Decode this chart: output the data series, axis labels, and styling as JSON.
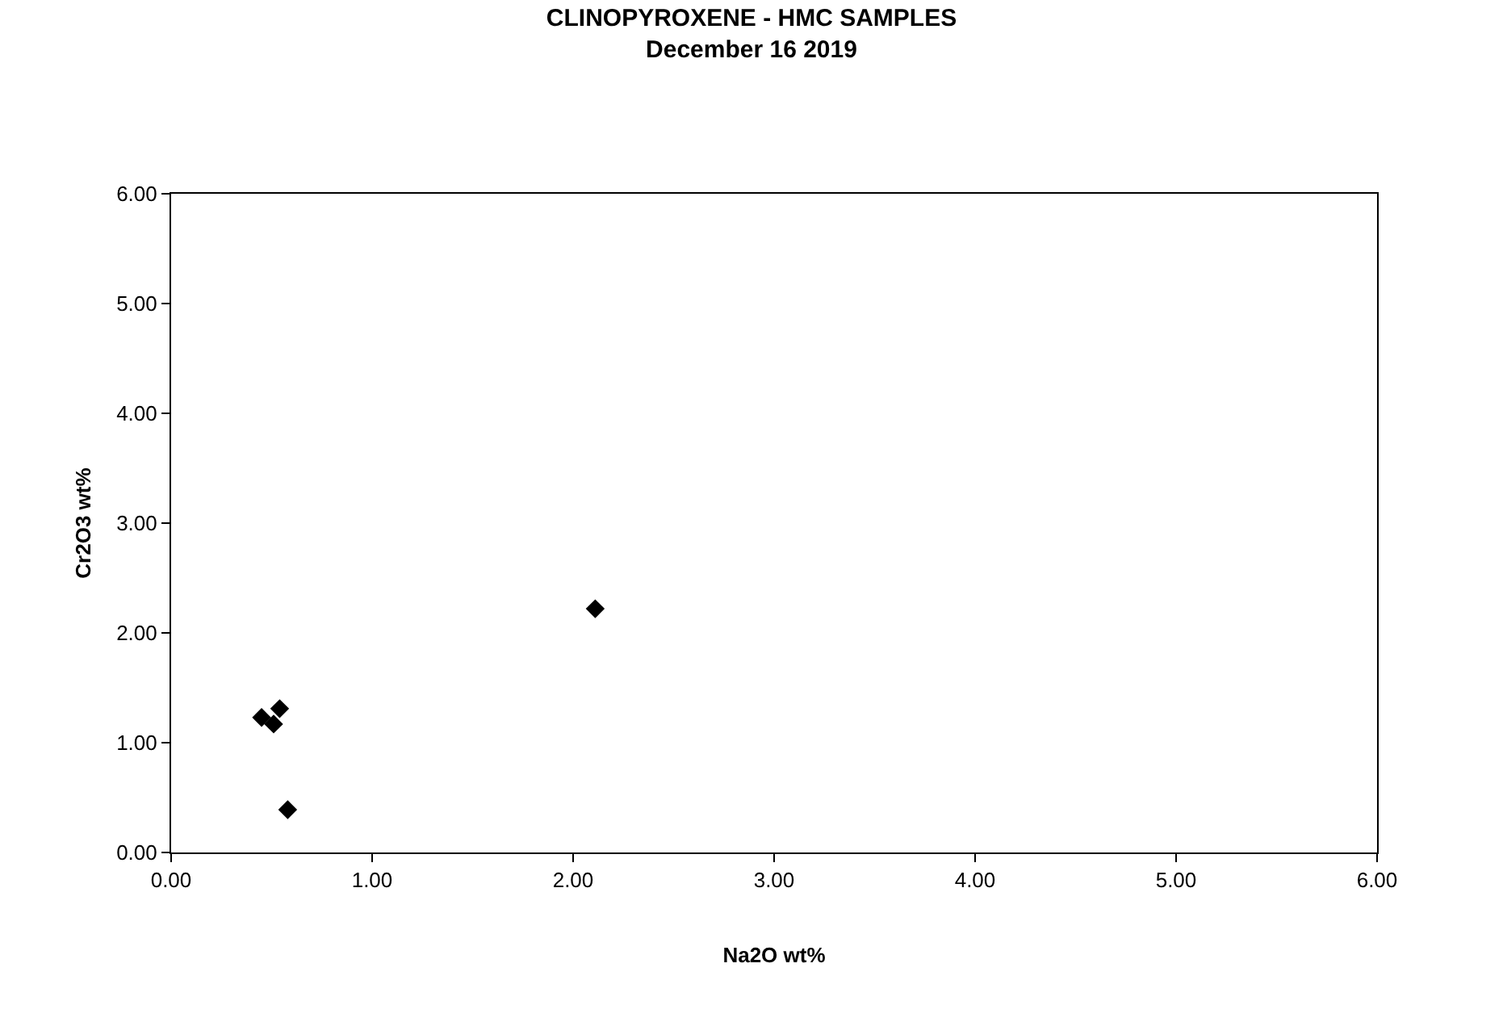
{
  "chart_data": {
    "type": "scatter",
    "title": "CLINOPYROXENE - HMC SAMPLES\nDecember 16 2019",
    "xlabel": "Na2O wt%",
    "ylabel": "Cr2O3 wt%",
    "x": [
      0.45,
      0.51,
      0.54,
      0.58,
      2.11
    ],
    "series": [
      {
        "color": "#000000",
        "values": [
          1.23,
          1.17,
          1.31,
          0.39,
          2.22
        ]
      }
    ],
    "xlim": [
      0,
      6
    ],
    "ylim": [
      0,
      6
    ],
    "xticks": [
      {
        "value": 0,
        "label": "0.00"
      },
      {
        "value": 1,
        "label": "1.00"
      },
      {
        "value": 2,
        "label": "2.00"
      },
      {
        "value": 3,
        "label": "3.00"
      },
      {
        "value": 4,
        "label": "4.00"
      },
      {
        "value": 5,
        "label": "5.00"
      },
      {
        "value": 6,
        "label": "6.00"
      }
    ],
    "yticks": [
      {
        "value": 0,
        "label": "0.00"
      },
      {
        "value": 1,
        "label": "1.00"
      },
      {
        "value": 2,
        "label": "2.00"
      },
      {
        "value": 3,
        "label": "3.00"
      },
      {
        "value": 4,
        "label": "4.00"
      },
      {
        "value": 5,
        "label": "5.00"
      },
      {
        "value": 6,
        "label": "6.00"
      }
    ],
    "marker": "diamond"
  }
}
